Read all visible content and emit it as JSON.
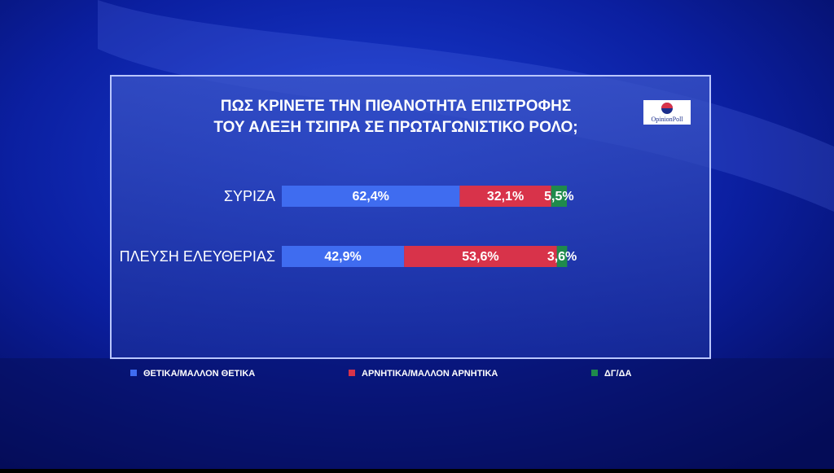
{
  "chart_data": {
    "type": "stacked-bar-horizontal",
    "title": [
      "ΠΩΣ ΚΡΙΝΕΤΕ ΤΗΝ ΠΙΘΑΝΟΤΗΤΑ ΕΠΙΣΤΡΟΦΗΣ",
      "ΤΟΥ ΑΛΕΞΗ ΤΣΙΠΡΑ ΣΕ ΠΡΩΤΑΓΩΝΙΣΤΙΚΟ ΡΟΛΟ;"
    ],
    "source": "OpinionPoll",
    "categories": [
      "ΣΥΡΙΖΑ",
      "ΠΛΕΥΣΗ ΕΛΕΥΘΕΡΙΑΣ"
    ],
    "series": [
      {
        "name": "ΘΕΤΙΚΑ/ΜΑΛΛΟΝ ΘΕΤΙΚΑ",
        "color": "#3f6cf0",
        "values": [
          62.4,
          42.9
        ],
        "value_labels": [
          "62,4%",
          "42,9%"
        ]
      },
      {
        "name": "ΑΡΝΗΤΙΚΑ/ΜΑΛΛΟΝ ΑΡΝΗΤΙΚΑ",
        "color": "#d8334a",
        "values": [
          32.1,
          53.6
        ],
        "value_labels": [
          "32,1%",
          "53,6%"
        ]
      },
      {
        "name": "ΔΓ/ΔΑ",
        "color": "#1f8a4c",
        "values": [
          5.5,
          3.6
        ],
        "value_labels": [
          "5,5%",
          "3,6%"
        ]
      }
    ]
  }
}
